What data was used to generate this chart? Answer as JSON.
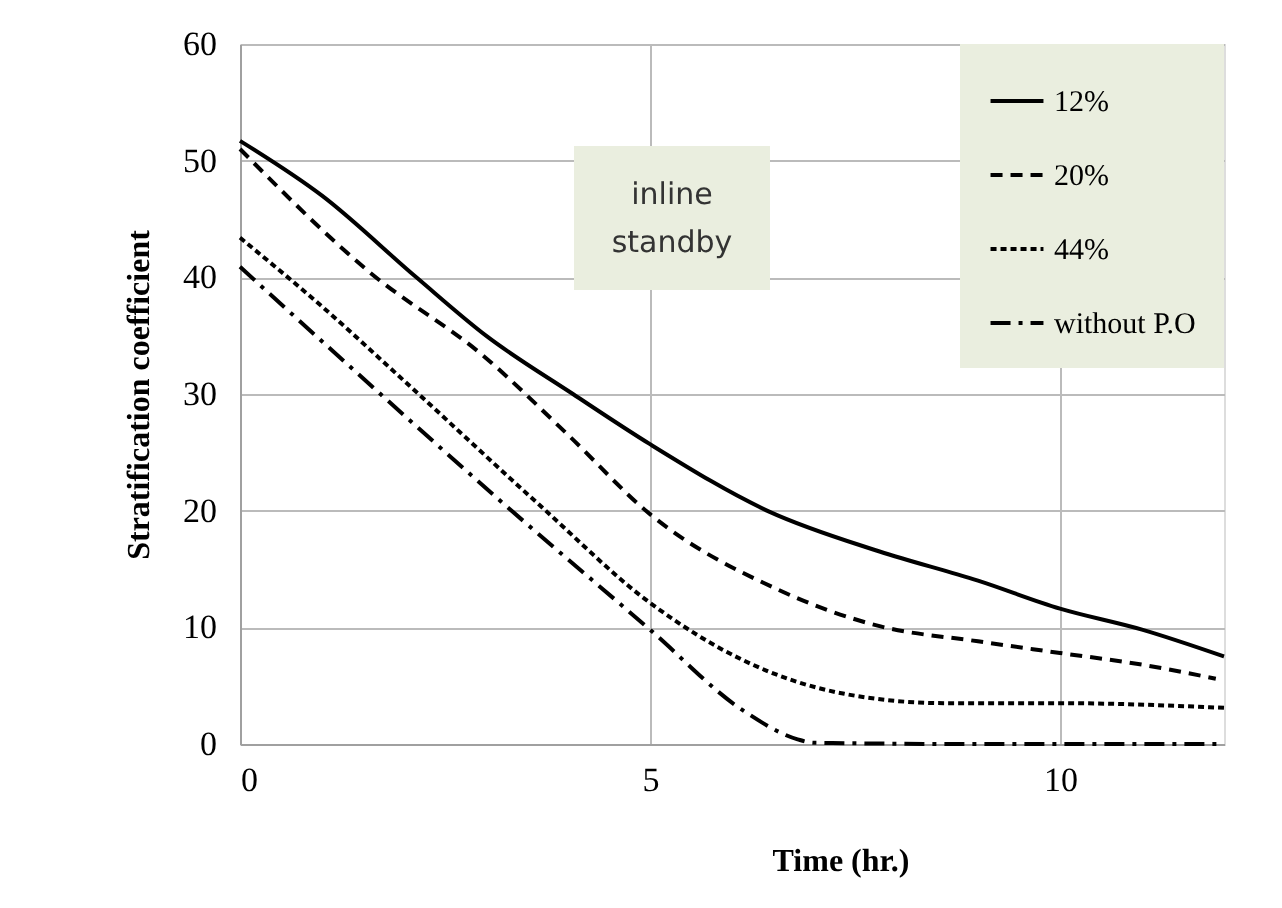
{
  "chart_data": {
    "type": "line",
    "xlabel": "Time (hr.)",
    "ylabel": "Stratification   coefficient",
    "xlim": [
      0,
      12
    ],
    "xticks": [
      0,
      5,
      10
    ],
    "ylim": [
      0,
      60
    ],
    "yticks": [
      0,
      10,
      20,
      30,
      40,
      50,
      60
    ],
    "grid": true,
    "legend": "top right",
    "marker": "none",
    "annotations": [
      "inline standby"
    ],
    "series": [
      {
        "name": "12%",
        "color": "#000000",
        "line_style": "solid",
        "x": [
          0,
          1,
          2.15,
          3,
          4.06,
          5,
          6.46,
          7.8,
          9,
          10,
          11,
          12
        ],
        "values": [
          51.7,
          47,
          40,
          35,
          30,
          25.7,
          19.9,
          16.5,
          14,
          11.6,
          9.8,
          7.5
        ]
      },
      {
        "name": "20%",
        "color": "#000000",
        "line_style": "dashed",
        "x": [
          0,
          1.57,
          2.98,
          4,
          5,
          6.54,
          7.8,
          9,
          10,
          11,
          11.9
        ],
        "values": [
          51,
          40.5,
          33.2,
          26.5,
          19.7,
          13.3,
          10.1,
          8.8,
          7.8,
          6.8,
          5.6
        ]
      },
      {
        "name": "44%",
        "color": "#000000",
        "line_style": "dotted",
        "x": [
          0,
          1,
          1.99,
          3.65,
          5,
          6.13,
          7.37,
          8.6,
          10,
          12
        ],
        "values": [
          43.4,
          37.5,
          31.2,
          20.5,
          12.1,
          7.2,
          4.3,
          3.5,
          3.5,
          3.1
        ]
      },
      {
        "name": "without P.O",
        "color": "#000000",
        "line_style": "dashdot",
        "x": [
          0,
          1.57,
          3.23,
          5,
          6.13,
          6.8,
          7,
          9,
          12
        ],
        "values": [
          40.9,
          30.9,
          20.5,
          9.8,
          2.9,
          0.4,
          0.1,
          0,
          0
        ]
      }
    ]
  }
}
